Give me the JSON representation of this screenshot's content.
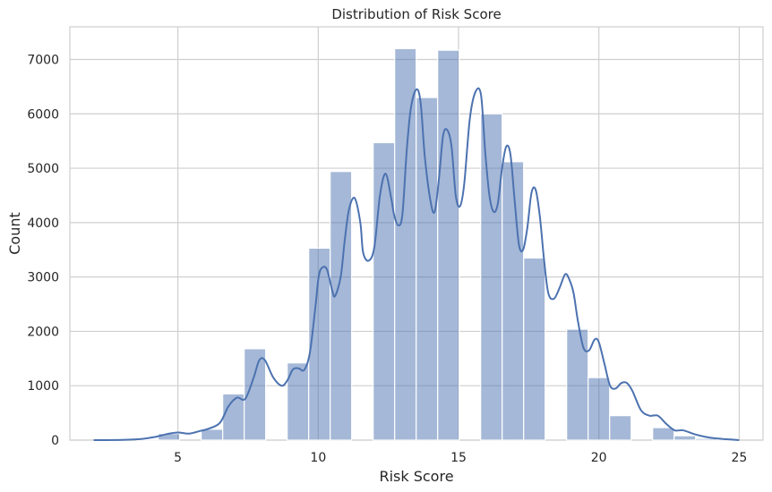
{
  "chart_data": {
    "type": "bar",
    "subtype": "histogram-with-kde",
    "title": "Distribution of Risk Score",
    "xlabel": "Risk Score",
    "ylabel": "Count",
    "xlim": [
      1.15,
      25.85
    ],
    "ylim": [
      0,
      7600
    ],
    "xticks": [
      5,
      10,
      15,
      20,
      25
    ],
    "yticks": [
      0,
      1000,
      2000,
      3000,
      4000,
      5000,
      6000,
      7000
    ],
    "grid": true,
    "bar_color": "#4c72b0",
    "line_color": "#4c72b0",
    "bins": [
      {
        "x0": 2.0,
        "x1": 2.766,
        "value": 0
      },
      {
        "x0": 2.766,
        "x1": 3.532,
        "value": 0
      },
      {
        "x0": 3.532,
        "x1": 4.298,
        "value": 10
      },
      {
        "x0": 4.298,
        "x1": 5.064,
        "value": 120
      },
      {
        "x0": 5.064,
        "x1": 5.83,
        "value": 0
      },
      {
        "x0": 5.83,
        "x1": 6.596,
        "value": 200
      },
      {
        "x0": 6.596,
        "x1": 7.362,
        "value": 850
      },
      {
        "x0": 7.362,
        "x1": 8.128,
        "value": 1680
      },
      {
        "x0": 8.128,
        "x1": 8.894,
        "value": 0
      },
      {
        "x0": 8.894,
        "x1": 9.66,
        "value": 1420
      },
      {
        "x0": 9.66,
        "x1": 10.426,
        "value": 3530
      },
      {
        "x0": 10.426,
        "x1": 11.192,
        "value": 4940
      },
      {
        "x0": 11.192,
        "x1": 11.958,
        "value": 0
      },
      {
        "x0": 11.958,
        "x1": 12.724,
        "value": 5470
      },
      {
        "x0": 12.724,
        "x1": 13.49,
        "value": 7200
      },
      {
        "x0": 13.49,
        "x1": 14.256,
        "value": 6300
      },
      {
        "x0": 14.256,
        "x1": 15.022,
        "value": 7170
      },
      {
        "x0": 15.022,
        "x1": 15.788,
        "value": 0
      },
      {
        "x0": 15.788,
        "x1": 16.554,
        "value": 6000
      },
      {
        "x0": 16.554,
        "x1": 17.32,
        "value": 5120
      },
      {
        "x0": 17.32,
        "x1": 18.086,
        "value": 3350
      },
      {
        "x0": 18.086,
        "x1": 18.852,
        "value": 0
      },
      {
        "x0": 18.852,
        "x1": 19.618,
        "value": 2040
      },
      {
        "x0": 19.618,
        "x1": 20.384,
        "value": 1150
      },
      {
        "x0": 20.384,
        "x1": 21.15,
        "value": 450
      },
      {
        "x0": 21.15,
        "x1": 21.916,
        "value": 0
      },
      {
        "x0": 21.916,
        "x1": 22.682,
        "value": 230
      },
      {
        "x0": 22.682,
        "x1": 23.448,
        "value": 80
      },
      {
        "x0": 23.448,
        "x1": 24.214,
        "value": 30
      },
      {
        "x0": 24.214,
        "x1": 24.98,
        "value": 10
      }
    ],
    "kde": {
      "x": [
        2.0,
        3.0,
        3.7,
        4.2,
        4.6,
        5.0,
        5.4,
        5.8,
        6.1,
        6.5,
        6.8,
        7.1,
        7.4,
        7.7,
        7.9,
        8.1,
        8.4,
        8.7,
        8.9,
        9.1,
        9.3,
        9.5,
        9.7,
        9.9,
        10.0,
        10.1,
        10.3,
        10.5,
        10.6,
        10.8,
        10.95,
        11.1,
        11.3,
        11.5,
        11.6,
        11.8,
        12.0,
        12.2,
        12.4,
        12.6,
        12.7,
        12.85,
        13.0,
        13.15,
        13.3,
        13.5,
        13.65,
        13.8,
        14.0,
        14.15,
        14.3,
        14.45,
        14.6,
        14.75,
        14.9,
        15.05,
        15.2,
        15.4,
        15.6,
        15.8,
        15.95,
        16.1,
        16.25,
        16.4,
        16.55,
        16.7,
        16.85,
        17.0,
        17.15,
        17.3,
        17.45,
        17.6,
        17.75,
        17.9,
        18.05,
        18.2,
        18.4,
        18.6,
        18.8,
        18.95,
        19.1,
        19.25,
        19.45,
        19.65,
        19.85,
        20.0,
        20.2,
        20.4,
        20.6,
        20.8,
        21.0,
        21.2,
        21.5,
        21.8,
        22.1,
        22.4,
        22.7,
        23.0,
        23.4,
        23.8,
        24.2,
        24.6,
        25.0
      ],
      "y": [
        0,
        5,
        20,
        60,
        110,
        140,
        120,
        170,
        210,
        320,
        620,
        780,
        760,
        1150,
        1470,
        1470,
        1150,
        1000,
        1100,
        1300,
        1320,
        1290,
        1600,
        2450,
        2950,
        3150,
        3150,
        2750,
        2650,
        3000,
        3700,
        4250,
        4450,
        4000,
        3450,
        3300,
        3550,
        4500,
        4900,
        4450,
        4150,
        3950,
        4150,
        5300,
        6100,
        6450,
        6200,
        5200,
        4400,
        4200,
        4800,
        5600,
        5700,
        5400,
        4500,
        4300,
        4700,
        5900,
        6400,
        6350,
        5300,
        4500,
        4200,
        4350,
        5000,
        5400,
        5250,
        4400,
        3600,
        3500,
        3900,
        4550,
        4600,
        4100,
        3300,
        2700,
        2600,
        2800,
        3050,
        2950,
        2700,
        2200,
        1700,
        1650,
        1850,
        1800,
        1400,
        1000,
        950,
        1050,
        1050,
        900,
        550,
        450,
        450,
        300,
        180,
        180,
        110,
        60,
        30,
        15,
        0
      ]
    }
  }
}
